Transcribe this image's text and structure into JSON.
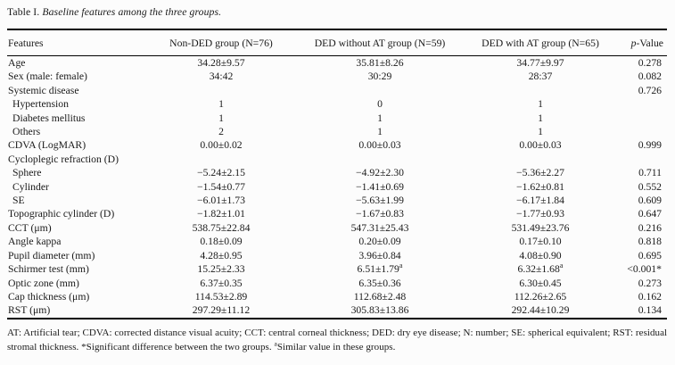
{
  "title": {
    "label": "Table I.",
    "caption": "Baseline features among the three groups."
  },
  "table": {
    "columns": [
      "Features",
      "Non-DED group (N=76)",
      "DED without AT group (N=59)",
      "DED with AT group (N=65)"
    ],
    "p_column": {
      "italic": "p",
      "rest": "-Value"
    },
    "rows": [
      {
        "label": "Age",
        "indent": false,
        "values": [
          "34.28±9.57",
          "35.81±8.26",
          "34.77±9.97",
          "0.278"
        ]
      },
      {
        "label": "Sex (male: female)",
        "indent": false,
        "values": [
          "34:42",
          "30:29",
          "28:37",
          "0.082"
        ]
      },
      {
        "label": "Systemic disease",
        "indent": false,
        "values": [
          "",
          "",
          "",
          "0.726"
        ]
      },
      {
        "label": "Hypertension",
        "indent": true,
        "values": [
          "1",
          "0",
          "1",
          ""
        ]
      },
      {
        "label": "Diabetes mellitus",
        "indent": true,
        "values": [
          "1",
          "1",
          "1",
          ""
        ]
      },
      {
        "label": "Others",
        "indent": true,
        "values": [
          "2",
          "1",
          "1",
          ""
        ]
      },
      {
        "label": "CDVA (LogMAR)",
        "indent": false,
        "values": [
          "0.00±0.02",
          "0.00±0.03",
          "0.00±0.03",
          "0.999"
        ]
      },
      {
        "label": "Cycloplegic refraction (D)",
        "indent": false,
        "values": [
          "",
          "",
          "",
          ""
        ]
      },
      {
        "label": "Sphere",
        "indent": true,
        "values": [
          "−5.24±2.15",
          "−4.92±2.30",
          "−5.36±2.27",
          "0.711"
        ]
      },
      {
        "label": "Cylinder",
        "indent": true,
        "values": [
          "−1.54±0.77",
          "−1.41±0.69",
          "−1.62±0.81",
          "0.552"
        ]
      },
      {
        "label": "SE",
        "indent": true,
        "values": [
          "−6.01±1.73",
          "−5.63±1.99",
          "−6.17±1.84",
          "0.609"
        ]
      },
      {
        "label": "Topographic cylinder (D)",
        "indent": false,
        "values": [
          "−1.82±1.01",
          "−1.67±0.83",
          "−1.77±0.93",
          "0.647"
        ]
      },
      {
        "label": "CCT (μm)",
        "indent": false,
        "values": [
          "538.75±22.84",
          "547.31±25.43",
          "531.49±23.76",
          "0.216"
        ]
      },
      {
        "label": "Angle kappa",
        "indent": false,
        "values": [
          "0.18±0.09",
          "0.20±0.09",
          "0.17±0.10",
          "0.818"
        ]
      },
      {
        "label": "Pupil diameter (mm)",
        "indent": false,
        "values": [
          "4.28±0.95",
          "3.96±0.84",
          "4.08±0.90",
          "0.695"
        ]
      },
      {
        "label": "Schirmer test (mm)",
        "indent": false,
        "values": [
          "15.25±2.33",
          "6.51±1.79^a",
          "6.32±1.68^a",
          "<0.001*"
        ]
      },
      {
        "label": "Optic zone (mm)",
        "indent": false,
        "values": [
          "6.37±0.35",
          "6.35±0.36",
          "6.30±0.45",
          "0.273"
        ]
      },
      {
        "label": "Cap thickness (μm)",
        "indent": false,
        "values": [
          "114.53±2.89",
          "112.68±2.48",
          "112.26±2.65",
          "0.162"
        ]
      },
      {
        "label": "RST (μm)",
        "indent": false,
        "values": [
          "297.29±11.12",
          "305.83±13.86",
          "292.44±10.29",
          "0.134"
        ]
      }
    ]
  },
  "footnote": {
    "part1": "AT: Artificial tear; CDVA: corrected distance visual acuity; CCT: central corneal thickness; DED: dry eye disease; N: number; SE: spherical equivalent; RST: residual stromal thickness. *Significant difference between the two groups. ",
    "sup": "a",
    "part2": "Similar value in these groups."
  },
  "colors": {
    "text": "#1a1a1a",
    "rule": "#000000",
    "background": "#fcfcfc"
  }
}
